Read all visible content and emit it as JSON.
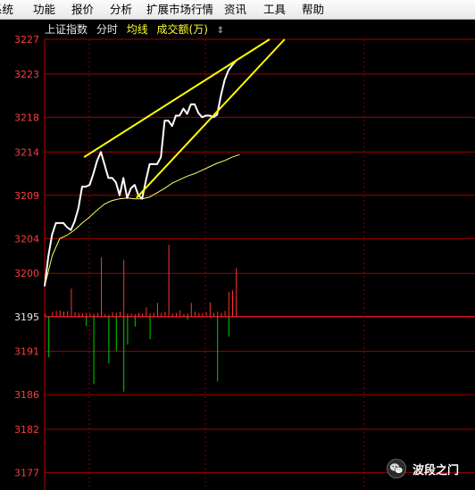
{
  "menu": [
    {
      "id": "system",
      "label": "系统"
    },
    {
      "id": "function",
      "label": "功能"
    },
    {
      "id": "quote",
      "label": "报价"
    },
    {
      "id": "analysis",
      "label": "分析"
    },
    {
      "id": "extended",
      "label": "扩展市场行情"
    },
    {
      "id": "info",
      "label": "资讯"
    },
    {
      "id": "tools",
      "label": "工具"
    },
    {
      "id": "help",
      "label": "帮助"
    }
  ],
  "header": {
    "index_name": "上证指数",
    "tab_timeshare": "分时",
    "tab_avgline": "均线",
    "tab_volume": "成交额(万)",
    "toggle_icon": "up-down-arrow-icon"
  },
  "colors": {
    "price_line": "#ffffff",
    "avg_line": "#ffff66",
    "trend_lines": "#ffff00",
    "up_bar": "#ff3333",
    "down_bar": "#00d000",
    "grid": "#a00000",
    "axis_label": "#ff3b3b"
  },
  "chart_data": {
    "type": "line",
    "title": "上证指数 分时",
    "ylim": [
      3175,
      3227
    ],
    "y_ticks": [
      3227,
      3223,
      3218,
      3214,
      3209,
      3204,
      3200,
      3195,
      3191,
      3186,
      3182,
      3177
    ],
    "base_price": 3195,
    "grid": true,
    "series": [
      {
        "name": "分时",
        "role": "price",
        "x": [
          0,
          1,
          2,
          3,
          4,
          5,
          6,
          7,
          8,
          9,
          10,
          11,
          12,
          13,
          14,
          15,
          16,
          17,
          18,
          19,
          20,
          21,
          22,
          23,
          24,
          25,
          26,
          27,
          28,
          29,
          30,
          31,
          32,
          33,
          34,
          35,
          36,
          37,
          38,
          39,
          40,
          41,
          42,
          43,
          44,
          45,
          46,
          47,
          48,
          49,
          50,
          51,
          52,
          53
        ],
        "values": [
          3198.5,
          3202.0,
          3204.5,
          3205.8,
          3205.8,
          3205.8,
          3205.3,
          3205.0,
          3206.0,
          3207.5,
          3210.0,
          3210.0,
          3210.2,
          3211.5,
          3213.0,
          3214.0,
          3212.5,
          3211.0,
          3211.0,
          3210.5,
          3209.0,
          3211.0,
          3208.7,
          3209.8,
          3210.2,
          3209.0,
          3208.6,
          3210.7,
          3212.6,
          3212.6,
          3212.6,
          3213.4,
          3217.6,
          3217.6,
          3217.0,
          3218.2,
          3218.2,
          3219.0,
          3218.4,
          3219.5,
          3219.5,
          3218.5,
          3218.0,
          3218.2,
          3218.2,
          3218.0,
          3218.3,
          3220.5,
          3222.3,
          3223.4,
          3224.0,
          3224.5,
          null,
          null
        ]
      },
      {
        "name": "均线",
        "role": "average",
        "x": [
          0,
          2,
          4,
          6,
          8,
          10,
          12,
          14,
          16,
          18,
          20,
          22,
          24,
          26,
          28,
          30,
          32,
          34,
          36,
          38,
          40,
          42,
          44,
          46,
          48,
          50,
          52
        ],
        "values": [
          3198.5,
          3202.0,
          3204.0,
          3204.4,
          3205.0,
          3205.8,
          3206.5,
          3207.3,
          3208.0,
          3208.4,
          3208.6,
          3208.7,
          3208.6,
          3208.6,
          3208.8,
          3209.3,
          3209.8,
          3210.4,
          3210.8,
          3211.2,
          3211.5,
          3211.9,
          3212.3,
          3212.7,
          3213.0,
          3213.4,
          3213.7
        ]
      }
    ],
    "trend_lines": [
      {
        "name": "upper",
        "from": [
          10.5,
          3213.4
        ],
        "to": [
          60,
          3227.0
        ]
      },
      {
        "name": "lower",
        "from": [
          24.5,
          3208.7
        ],
        "to": [
          64,
          3227.0
        ]
      }
    ],
    "volume": {
      "ylabel": "成交额(万)",
      "up_x": [
        0,
        2,
        3,
        4,
        5,
        6,
        7,
        8,
        9,
        10,
        11,
        12,
        13,
        14,
        15,
        16,
        17,
        18,
        19,
        20,
        21,
        22,
        23,
        24,
        25,
        26,
        27,
        28,
        29,
        30,
        31,
        32,
        33,
        34,
        35,
        36,
        37,
        38,
        39,
        40,
        41,
        42,
        43,
        44,
        45,
        46,
        47,
        48,
        49,
        50,
        51
      ],
      "up_vals": [
        0.5,
        0.8,
        0.9,
        1.0,
        0.8,
        0.9,
        4.5,
        0.7,
        0.6,
        0.5,
        0.6,
        0.5,
        0.5,
        0.6,
        9.5,
        0.4,
        0.3,
        0.7,
        0.6,
        0.8,
        9.1,
        0.5,
        0.5,
        0.4,
        0.6,
        0.5,
        1.5,
        0.5,
        0.6,
        2.2,
        0.6,
        0.8,
        11.5,
        0.5,
        0.6,
        1.0,
        0.4,
        0.5,
        2.2,
        0.8,
        0.6,
        0.6,
        0.7,
        2.3,
        0.6,
        0.8,
        0.6,
        0.9,
        4.0,
        4.2,
        7.8
      ],
      "down_x": [
        1,
        11,
        13,
        17,
        19,
        21,
        22,
        24,
        28,
        38,
        46,
        49
      ],
      "down_vals": [
        6.5,
        1.5,
        10.8,
        7.5,
        5.5,
        12.0,
        4.5,
        1.6,
        3.6,
        0.5,
        10.4,
        3.2
      ]
    }
  },
  "watermark": {
    "icon": "wechat-icon",
    "text": "波段之门"
  }
}
